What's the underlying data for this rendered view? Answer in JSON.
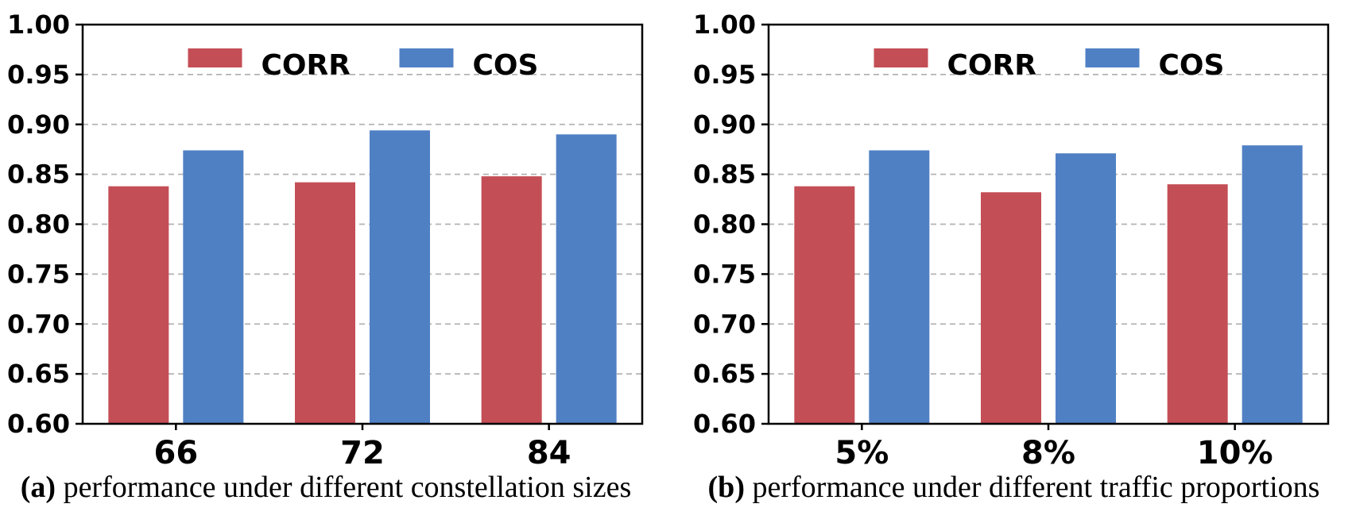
{
  "colors": {
    "corr_red": "#c44e56",
    "cos_blue": "#5080c4",
    "gridline_gray": "#b3b3b3",
    "axis_black": "#000000",
    "background": "#ffffff"
  },
  "legend": {
    "items": [
      {
        "label": "CORR",
        "color": "#c44e56"
      },
      {
        "label": "COS",
        "color": "#5080c4"
      }
    ],
    "position": "upper-center-inside",
    "frame": false
  },
  "chart_data": [
    {
      "id": "a",
      "type": "bar",
      "title": "",
      "xlabel": "",
      "ylabel": "",
      "caption_prefix": "(a)",
      "caption_text": "performance under different constellation sizes",
      "categories": [
        "66",
        "72",
        "84"
      ],
      "series": [
        {
          "name": "CORR",
          "color": "#c44e56",
          "values": [
            0.838,
            0.842,
            0.848
          ]
        },
        {
          "name": "COS",
          "color": "#5080c4",
          "values": [
            0.874,
            0.894,
            0.89
          ]
        }
      ],
      "ylim": [
        0.6,
        1.0
      ],
      "yticks": [
        1.0,
        0.95,
        0.9,
        0.85,
        0.8,
        0.75,
        0.7,
        0.65,
        0.6
      ],
      "grid": "horizontal-dashed",
      "legend_position": "upper-center-inside"
    },
    {
      "id": "b",
      "type": "bar",
      "title": "",
      "xlabel": "",
      "ylabel": "",
      "caption_prefix": "(b)",
      "caption_text": "performance under different traffic proportions",
      "categories": [
        "5%",
        "8%",
        "10%"
      ],
      "series": [
        {
          "name": "CORR",
          "color": "#c44e56",
          "values": [
            0.838,
            0.832,
            0.84
          ]
        },
        {
          "name": "COS",
          "color": "#5080c4",
          "values": [
            0.874,
            0.871,
            0.879
          ]
        }
      ],
      "ylim": [
        0.6,
        1.0
      ],
      "yticks": [
        1.0,
        0.95,
        0.9,
        0.85,
        0.8,
        0.75,
        0.7,
        0.65,
        0.6
      ],
      "grid": "horizontal-dashed",
      "legend_position": "upper-center-inside"
    }
  ]
}
